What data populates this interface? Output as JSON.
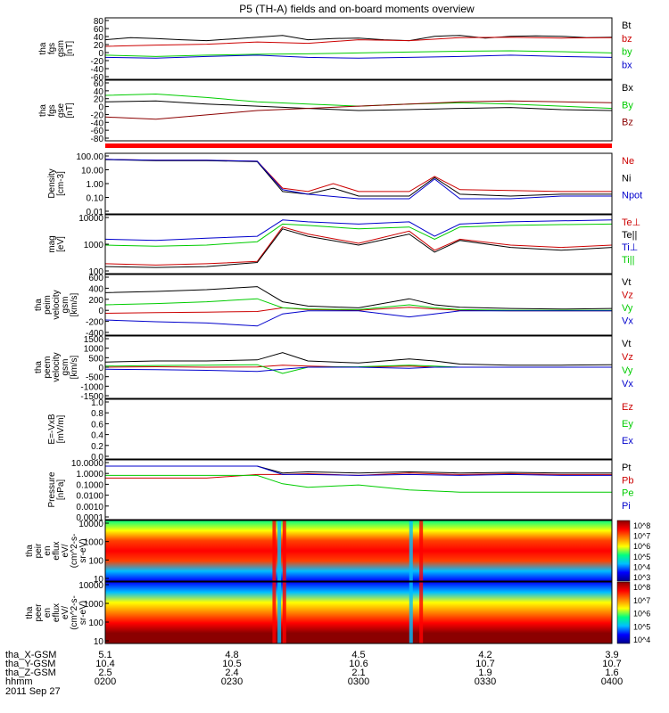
{
  "title": "P5 (TH-A) fields and on-board moments overview",
  "date_label": "2011 Sep 27",
  "ephemeris": {
    "row_labels": [
      "tha_X-GSM",
      "tha_Y-GSM",
      "tha_Z-GSM",
      "hhmm"
    ],
    "columns": [
      {
        "x": "5.1",
        "y": "10.4",
        "z": "2.5",
        "hhmm": "0200"
      },
      {
        "x": "4.8",
        "y": "10.5",
        "z": "2.4",
        "hhmm": "0230"
      },
      {
        "x": "4.5",
        "y": "10.6",
        "z": "2.1",
        "hhmm": "0300"
      },
      {
        "x": "4.2",
        "y": "10.7",
        "z": "1.9",
        "hhmm": "0330"
      },
      {
        "x": "3.9",
        "y": "10.7",
        "z": "1.6",
        "hhmm": "0400"
      }
    ]
  },
  "chart_data": [
    {
      "type": "line",
      "ylabel": [
        "tha",
        "fgs",
        "gsm",
        "[nT]"
      ],
      "yticks": [
        "80",
        "60",
        "40",
        "20",
        "0",
        "-20",
        "-40",
        "-60"
      ],
      "ylim": [
        -60,
        80
      ],
      "series": [
        {
          "name": "Bt",
          "color": "#000000",
          "x": [
            0,
            0.05,
            0.1,
            0.15,
            0.2,
            0.25,
            0.3,
            0.35,
            0.4,
            0.45,
            0.5,
            0.55,
            0.6,
            0.65,
            0.7,
            0.75,
            0.8,
            0.85,
            0.9,
            0.95,
            1.0
          ],
          "values": [
            30,
            35,
            33,
            30,
            28,
            32,
            36,
            40,
            30,
            33,
            34,
            30,
            28,
            38,
            40,
            34,
            38,
            39,
            38,
            35,
            36
          ]
        },
        {
          "name": "bz",
          "color": "#cc0000",
          "x": [
            0,
            0.1,
            0.2,
            0.3,
            0.4,
            0.5,
            0.6,
            0.7,
            0.8,
            0.9,
            1.0
          ],
          "values": [
            15,
            18,
            20,
            25,
            22,
            30,
            28,
            35,
            36,
            34,
            35
          ]
        },
        {
          "name": "by",
          "color": "#00cc00",
          "x": [
            0,
            0.1,
            0.2,
            0.3,
            0.4,
            0.5,
            0.6,
            0.7,
            0.8,
            0.9,
            1.0
          ],
          "values": [
            -5,
            -8,
            -5,
            -3,
            -2,
            0,
            2,
            4,
            5,
            3,
            0
          ]
        },
        {
          "name": "bx",
          "color": "#0000cc",
          "x": [
            0,
            0.1,
            0.2,
            0.3,
            0.4,
            0.5,
            0.6,
            0.7,
            0.8,
            0.9,
            1.0
          ],
          "values": [
            -10,
            -12,
            -8,
            -5,
            -10,
            -12,
            -10,
            -8,
            -5,
            -8,
            -10
          ]
        }
      ]
    },
    {
      "type": "line",
      "ylabel": [
        "tha",
        "fgs",
        "gse",
        "[nT]"
      ],
      "yticks": [
        "60",
        "40",
        "20",
        "0",
        "-20",
        "-40",
        "-60",
        "-80"
      ],
      "ylim": [
        -80,
        60
      ],
      "series": [
        {
          "name": "Bx",
          "color": "#000000",
          "x": [
            0,
            0.1,
            0.2,
            0.3,
            0.4,
            0.5,
            0.6,
            0.7,
            0.8,
            0.9,
            1.0
          ],
          "values": [
            10,
            12,
            5,
            0,
            -5,
            -10,
            -8,
            -5,
            -3,
            -8,
            -10
          ]
        },
        {
          "name": "By",
          "color": "#00cc00",
          "x": [
            0,
            0.1,
            0.2,
            0.3,
            0.4,
            0.5,
            0.6,
            0.7,
            0.8,
            0.9,
            1.0
          ],
          "values": [
            25,
            28,
            20,
            10,
            5,
            0,
            5,
            8,
            5,
            0,
            -5
          ]
        },
        {
          "name": "Bz",
          "color": "#8b0000",
          "x": [
            0,
            0.1,
            0.2,
            0.3,
            0.4,
            0.5,
            0.6,
            0.7,
            0.8,
            0.9,
            1.0
          ],
          "values": [
            -25,
            -30,
            -20,
            -10,
            -5,
            0,
            5,
            10,
            12,
            10,
            8
          ]
        }
      ]
    },
    {
      "type": "line",
      "log": true,
      "ylabel": [
        "Density",
        "[cm-3]"
      ],
      "yticks": [
        "100.00",
        "10.00",
        "1.00",
        "0.10",
        "0.01"
      ],
      "ylim": [
        0.01,
        100
      ],
      "series": [
        {
          "name": "Ne",
          "color": "#cc0000",
          "x": [
            0,
            0.1,
            0.2,
            0.3,
            0.35,
            0.4,
            0.45,
            0.5,
            0.6,
            0.65,
            0.7,
            0.8,
            0.9,
            1.0
          ],
          "values": [
            40,
            35,
            35,
            30,
            0.5,
            0.3,
            1.0,
            0.3,
            0.3,
            3.0,
            0.4,
            0.35,
            0.3,
            0.3
          ]
        },
        {
          "name": "Ni",
          "color": "#000000",
          "x": [
            0,
            0.1,
            0.2,
            0.3,
            0.35,
            0.4,
            0.45,
            0.5,
            0.6,
            0.65,
            0.7,
            0.8,
            0.9,
            1.0
          ],
          "values": [
            38,
            33,
            33,
            28,
            0.3,
            0.2,
            0.5,
            0.15,
            0.15,
            2.5,
            0.2,
            0.15,
            0.2,
            0.2
          ]
        },
        {
          "name": "Npot",
          "color": "#0000cc",
          "x": [
            0,
            0.1,
            0.2,
            0.3,
            0.35,
            0.4,
            0.5,
            0.6,
            0.65,
            0.7,
            0.8,
            0.9,
            1.0
          ],
          "values": [
            40,
            35,
            35,
            30,
            0.4,
            0.2,
            0.1,
            0.1,
            2.0,
            0.1,
            0.1,
            0.15,
            0.15
          ]
        }
      ]
    },
    {
      "type": "line",
      "log": true,
      "ylabel": [
        "mag",
        "[eV]"
      ],
      "yticks": [
        "10000",
        "1000",
        "100"
      ],
      "ylim": [
        30,
        10000
      ],
      "series": [
        {
          "name": "Te⊥",
          "color": "#cc0000",
          "x": [
            0,
            0.1,
            0.2,
            0.3,
            0.35,
            0.4,
            0.5,
            0.6,
            0.65,
            0.7,
            0.8,
            0.9,
            1.0
          ],
          "values": [
            80,
            70,
            80,
            100,
            3000,
            1500,
            600,
            2000,
            300,
            900,
            500,
            400,
            500
          ]
        },
        {
          "name": "Te||",
          "color": "#000000",
          "x": [
            0,
            0.1,
            0.2,
            0.3,
            0.35,
            0.4,
            0.5,
            0.6,
            0.65,
            0.7,
            0.8,
            0.9,
            1.0
          ],
          "values": [
            60,
            55,
            60,
            90,
            2500,
            1200,
            500,
            1500,
            250,
            800,
            400,
            300,
            400
          ]
        },
        {
          "name": "Ti⊥",
          "color": "#0000cc",
          "x": [
            0,
            0.1,
            0.2,
            0.3,
            0.35,
            0.4,
            0.5,
            0.6,
            0.65,
            0.7,
            0.8,
            0.9,
            1.0
          ],
          "values": [
            900,
            800,
            1000,
            1200,
            6000,
            5000,
            4000,
            5000,
            1200,
            4000,
            5000,
            5500,
            6000
          ]
        },
        {
          "name": "Ti||",
          "color": "#00cc00",
          "x": [
            0,
            0.1,
            0.2,
            0.3,
            0.35,
            0.4,
            0.5,
            0.6,
            0.65,
            0.7,
            0.8,
            0.9,
            1.0
          ],
          "values": [
            500,
            450,
            500,
            700,
            4000,
            3500,
            2500,
            3000,
            900,
            3000,
            3500,
            3800,
            4000
          ]
        }
      ]
    },
    {
      "type": "line",
      "ylabel": [
        "tha",
        "peim",
        "velocity",
        "gsm",
        "[km/s]"
      ],
      "yticks": [
        "600",
        "400",
        "200",
        "0",
        "-200",
        "-400"
      ],
      "ylim": [
        -400,
        600
      ],
      "series": [
        {
          "name": "Vt",
          "color": "#000000",
          "x": [
            0,
            0.1,
            0.2,
            0.3,
            0.35,
            0.4,
            0.5,
            0.6,
            0.65,
            0.7,
            0.8,
            0.9,
            1.0
          ],
          "values": [
            300,
            320,
            350,
            400,
            150,
            80,
            50,
            200,
            100,
            60,
            40,
            30,
            40
          ]
        },
        {
          "name": "Vz",
          "color": "#cc0000",
          "x": [
            0,
            0.1,
            0.2,
            0.3,
            0.35,
            0.4,
            0.5,
            0.6,
            0.65,
            0.7,
            0.8,
            0.9,
            1.0
          ],
          "values": [
            -40,
            -30,
            -20,
            -10,
            50,
            20,
            10,
            60,
            30,
            10,
            0,
            0,
            0
          ]
        },
        {
          "name": "Vy",
          "color": "#00cc00",
          "x": [
            0,
            0.1,
            0.2,
            0.3,
            0.35,
            0.4,
            0.5,
            0.6,
            0.65,
            0.7,
            0.8,
            0.9,
            1.0
          ],
          "values": [
            100,
            120,
            150,
            200,
            50,
            30,
            20,
            100,
            50,
            20,
            10,
            10,
            10
          ]
        },
        {
          "name": "Vx",
          "color": "#0000cc",
          "x": [
            0,
            0.1,
            0.2,
            0.3,
            0.35,
            0.4,
            0.5,
            0.6,
            0.65,
            0.7,
            0.8,
            0.9,
            1.0
          ],
          "values": [
            -150,
            -180,
            -200,
            -250,
            -50,
            0,
            0,
            -100,
            -50,
            0,
            0,
            0,
            0
          ]
        }
      ]
    },
    {
      "type": "line",
      "ylabel": [
        "tha",
        "peem",
        "velocity",
        "gsm",
        "[km/s]"
      ],
      "yticks": [
        "1500",
        "1000",
        "500",
        "0",
        "-500",
        "-1000",
        "-1500"
      ],
      "ylim": [
        -1500,
        1500
      ],
      "series": [
        {
          "name": "Vt",
          "color": "#000000",
          "x": [
            0,
            0.1,
            0.2,
            0.3,
            0.35,
            0.4,
            0.5,
            0.6,
            0.65,
            0.7,
            0.8,
            0.9,
            1.0
          ],
          "values": [
            250,
            300,
            300,
            350,
            700,
            300,
            200,
            400,
            300,
            150,
            100,
            100,
            120
          ]
        },
        {
          "name": "Vz",
          "color": "#cc0000",
          "x": [
            0,
            0.1,
            0.2,
            0.3,
            0.35,
            0.4,
            0.5,
            0.6,
            0.65,
            0.7,
            0.8,
            0.9,
            1.0
          ],
          "values": [
            0,
            20,
            0,
            10,
            100,
            50,
            0,
            50,
            0,
            0,
            0,
            0,
            0
          ]
        },
        {
          "name": "Vy",
          "color": "#00cc00",
          "x": [
            0,
            0.1,
            0.2,
            0.3,
            0.35,
            0.4,
            0.5,
            0.6,
            0.65,
            0.7,
            0.8,
            0.9,
            1.0
          ],
          "values": [
            50,
            80,
            100,
            120,
            -300,
            0,
            20,
            100,
            50,
            0,
            0,
            0,
            0
          ]
        },
        {
          "name": "Vx",
          "color": "#0000cc",
          "x": [
            0,
            0.1,
            0.2,
            0.3,
            0.35,
            0.4,
            0.5,
            0.6,
            0.65,
            0.7,
            0.8,
            0.9,
            1.0
          ],
          "values": [
            -100,
            -120,
            -150,
            -200,
            -100,
            0,
            0,
            -50,
            0,
            0,
            0,
            0,
            0
          ]
        }
      ]
    },
    {
      "type": "line",
      "ylabel": [
        "E=-VxB",
        "[mV/m]"
      ],
      "yticks": [
        "1.0",
        "0.8",
        "0.6",
        "0.4",
        "0.2",
        "0.0"
      ],
      "ylim": [
        0,
        1
      ],
      "series": [
        {
          "name": "Ez",
          "color": "#cc0000",
          "x": [],
          "values": []
        },
        {
          "name": "Ey",
          "color": "#00cc00",
          "x": [],
          "values": []
        },
        {
          "name": "Ex",
          "color": "#0000cc",
          "x": [],
          "values": []
        }
      ]
    },
    {
      "type": "line",
      "log": true,
      "ylabel": [
        "Pressure",
        "[nPa]"
      ],
      "yticks": [
        "10.0000",
        "1.0000",
        "0.1000",
        "0.0100",
        "0.0010",
        "0.0001"
      ],
      "ylim": [
        0.0001,
        10
      ],
      "series": [
        {
          "name": "Pt",
          "color": "#000000",
          "x": [
            0,
            0.1,
            0.2,
            0.3,
            0.35,
            0.4,
            0.5,
            0.6,
            0.7,
            0.8,
            0.9,
            1.0
          ],
          "values": [
            3,
            3,
            3,
            3,
            0.8,
            1.0,
            0.8,
            1.0,
            0.8,
            0.9,
            0.8,
            0.8
          ]
        },
        {
          "name": "Pb",
          "color": "#cc0000",
          "x": [
            0,
            0.1,
            0.2,
            0.3,
            0.35,
            0.4,
            0.5,
            0.6,
            0.7,
            0.8,
            0.9,
            1.0
          ],
          "values": [
            0.3,
            0.3,
            0.3,
            0.6,
            0.6,
            0.7,
            0.5,
            0.8,
            0.6,
            0.7,
            0.6,
            0.6
          ]
        },
        {
          "name": "Pe",
          "color": "#00cc00",
          "x": [
            0,
            0.1,
            0.2,
            0.3,
            0.35,
            0.4,
            0.5,
            0.6,
            0.7,
            0.8,
            0.9,
            1.0
          ],
          "values": [
            0.5,
            0.5,
            0.5,
            0.5,
            0.1,
            0.05,
            0.08,
            0.03,
            0.02,
            0.02,
            0.02,
            0.02
          ]
        },
        {
          "name": "Pi",
          "color": "#0000cc",
          "x": [
            0,
            0.1,
            0.2,
            0.3,
            0.35,
            0.4,
            0.5,
            0.6,
            0.7,
            0.8,
            0.9,
            1.0
          ],
          "values": [
            3,
            3,
            3,
            3,
            0.6,
            0.6,
            0.5,
            0.6,
            0.5,
            0.6,
            0.5,
            0.5
          ]
        }
      ]
    },
    {
      "type": "heatmap",
      "ylabel": [
        "tha",
        "peir",
        "en",
        "eflux",
        "eV/",
        "(cm^2-s-",
        "sr-eV)"
      ],
      "yticks": [
        "10000",
        "1000",
        "100",
        "10"
      ],
      "ylim": [
        10,
        20000
      ],
      "colorbar_ticks": [
        "10^8",
        "10^7",
        "10^6",
        "10^5",
        "10^4",
        "10^3"
      ]
    },
    {
      "type": "heatmap",
      "ylabel": [
        "tha",
        "peer",
        "en",
        "eflux",
        "eV/",
        "(cm^2-s-",
        "sr-eV)"
      ],
      "yticks": [
        "10000",
        "1000",
        "100",
        "10"
      ],
      "ylim": [
        10,
        20000
      ],
      "colorbar_ticks": [
        "10^8",
        "10^7",
        "10^6",
        "10^5",
        "10^4"
      ]
    }
  ]
}
